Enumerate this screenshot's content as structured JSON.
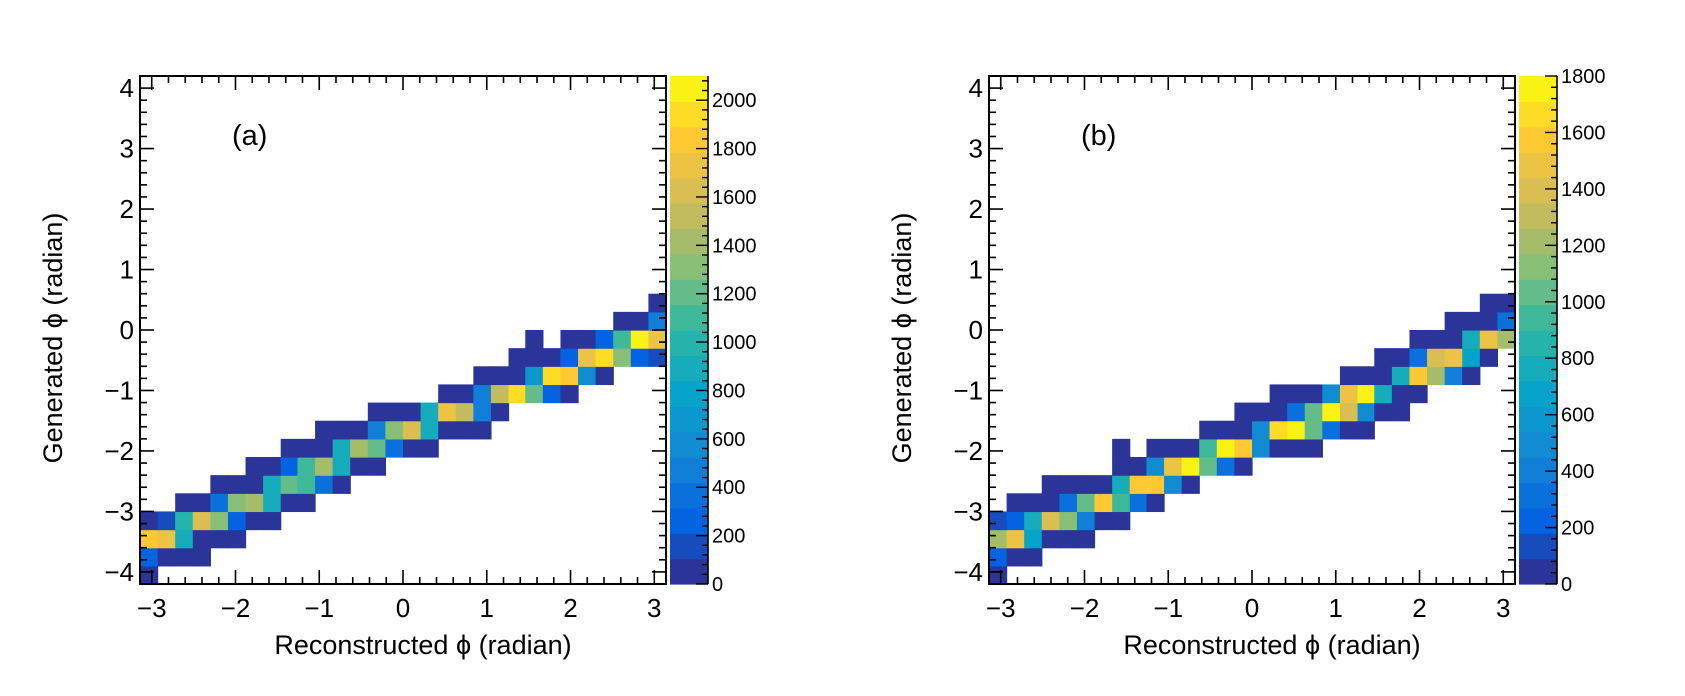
{
  "chart_data": [
    {
      "type": "heatmap",
      "panel_label": "(a)",
      "xlabel": "Reconstructed ϕ (radian)",
      "ylabel": "Generated ϕ (radian)",
      "xlim": [
        -3.14,
        3.14
      ],
      "ylim": [
        -4.2,
        4.2
      ],
      "x_ticks": [
        -3,
        -2,
        -1,
        0,
        1,
        2,
        3
      ],
      "y_ticks": [
        -4,
        -3,
        -2,
        -1,
        0,
        1,
        2,
        3,
        4
      ],
      "x_tick_labels": [
        "−3",
        "−2",
        "−1",
        "0",
        "1",
        "2",
        "3"
      ],
      "y_tick_labels": [
        "−4",
        "−3",
        "−2",
        "−1",
        "0",
        "1",
        "2",
        "3",
        "4"
      ],
      "colorbar": {
        "min": 0,
        "max": 2100,
        "ticks": [
          0,
          200,
          400,
          600,
          800,
          1000,
          1200,
          1400,
          1600,
          1800,
          2000
        ],
        "tick_labels": [
          "0",
          "200",
          "400",
          "600",
          "800",
          "1000",
          "1200",
          "1400",
          "1600",
          "1800",
          "2000"
        ]
      },
      "x_edges": [
        -3.14,
        -2.93,
        -2.72,
        -2.51,
        -2.3,
        -2.09,
        -1.88,
        -1.67,
        -1.46,
        -1.26,
        -1.05,
        -0.84,
        -0.63,
        -0.42,
        -0.21,
        0.0,
        0.21,
        0.42,
        0.63,
        0.84,
        1.05,
        1.26,
        1.46,
        1.67,
        1.88,
        2.09,
        2.3,
        2.51,
        2.72,
        2.93,
        3.14
      ],
      "y_edges": [
        -4.2,
        -3.9,
        -3.6,
        -3.3,
        -3.0,
        -2.7,
        -2.4,
        -2.1,
        -1.8,
        -1.5,
        -1.2,
        -0.9,
        -0.6,
        -0.3,
        0.0,
        0.3,
        0.6,
        0.9,
        1.2,
        1.5,
        1.8,
        2.1,
        2.4,
        2.7,
        3.0,
        3.3,
        3.6,
        3.9,
        4.2
      ],
      "cells": [
        [
          0,
          0,
          20
        ],
        [
          0,
          1,
          250
        ],
        [
          1,
          1,
          50
        ],
        [
          2,
          1,
          50
        ],
        [
          3,
          1,
          50
        ],
        [
          0,
          2,
          1800
        ],
        [
          1,
          2,
          1700
        ],
        [
          2,
          2,
          900
        ],
        [
          3,
          2,
          40
        ],
        [
          4,
          2,
          40
        ],
        [
          5,
          2,
          40
        ],
        [
          0,
          3,
          100
        ],
        [
          1,
          3,
          200
        ],
        [
          2,
          3,
          1000
        ],
        [
          3,
          3,
          1600
        ],
        [
          4,
          3,
          1300
        ],
        [
          5,
          3,
          300
        ],
        [
          6,
          3,
          40
        ],
        [
          7,
          3,
          40
        ],
        [
          2,
          4,
          40
        ],
        [
          3,
          4,
          40
        ],
        [
          4,
          4,
          400
        ],
        [
          5,
          4,
          1300
        ],
        [
          6,
          4,
          1400
        ],
        [
          7,
          4,
          900
        ],
        [
          8,
          4,
          40
        ],
        [
          9,
          4,
          40
        ],
        [
          4,
          5,
          40
        ],
        [
          5,
          5,
          40
        ],
        [
          6,
          5,
          40
        ],
        [
          7,
          5,
          850
        ],
        [
          8,
          5,
          1200
        ],
        [
          9,
          5,
          1150
        ],
        [
          10,
          5,
          400
        ],
        [
          11,
          5,
          40
        ],
        [
          6,
          6,
          40
        ],
        [
          7,
          6,
          40
        ],
        [
          8,
          6,
          300
        ],
        [
          9,
          6,
          1150
        ],
        [
          10,
          6,
          1400
        ],
        [
          11,
          6,
          850
        ],
        [
          12,
          6,
          40
        ],
        [
          13,
          6,
          40
        ],
        [
          8,
          7,
          40
        ],
        [
          9,
          7,
          40
        ],
        [
          10,
          7,
          40
        ],
        [
          11,
          7,
          850
        ],
        [
          12,
          7,
          1450
        ],
        [
          13,
          7,
          1200
        ],
        [
          14,
          7,
          400
        ],
        [
          15,
          7,
          40
        ],
        [
          16,
          7,
          40
        ],
        [
          10,
          8,
          40
        ],
        [
          11,
          8,
          40
        ],
        [
          12,
          8,
          40
        ],
        [
          13,
          8,
          450
        ],
        [
          14,
          8,
          1350
        ],
        [
          15,
          8,
          1650
        ],
        [
          16,
          8,
          900
        ],
        [
          17,
          8,
          40
        ],
        [
          18,
          8,
          40
        ],
        [
          19,
          8,
          40
        ],
        [
          13,
          9,
          40
        ],
        [
          14,
          9,
          40
        ],
        [
          15,
          9,
          40
        ],
        [
          16,
          9,
          850
        ],
        [
          17,
          9,
          1700
        ],
        [
          18,
          9,
          1500
        ],
        [
          19,
          9,
          500
        ],
        [
          20,
          9,
          40
        ],
        [
          17,
          10,
          40
        ],
        [
          18,
          10,
          40
        ],
        [
          19,
          10,
          450
        ],
        [
          20,
          10,
          1500
        ],
        [
          21,
          10,
          1900
        ],
        [
          22,
          10,
          1200
        ],
        [
          23,
          10,
          300
        ],
        [
          24,
          10,
          40
        ],
        [
          19,
          11,
          40
        ],
        [
          20,
          11,
          40
        ],
        [
          21,
          11,
          40
        ],
        [
          22,
          11,
          700
        ],
        [
          23,
          11,
          1950
        ],
        [
          24,
          11,
          1800
        ],
        [
          25,
          11,
          600
        ],
        [
          26,
          11,
          40
        ],
        [
          21,
          12,
          40
        ],
        [
          22,
          12,
          40
        ],
        [
          23,
          12,
          40
        ],
        [
          24,
          12,
          300
        ],
        [
          25,
          12,
          1700
        ],
        [
          26,
          12,
          1900
        ],
        [
          27,
          12,
          1300
        ],
        [
          28,
          12,
          250
        ],
        [
          29,
          12,
          120
        ],
        [
          22,
          13,
          40
        ],
        [
          24,
          13,
          40
        ],
        [
          25,
          13,
          40
        ],
        [
          26,
          13,
          250
        ],
        [
          27,
          13,
          1050
        ],
        [
          28,
          13,
          2050
        ],
        [
          29,
          13,
          1700
        ],
        [
          27,
          14,
          40
        ],
        [
          28,
          14,
          40
        ],
        [
          29,
          14,
          500
        ],
        [
          29,
          15,
          40
        ]
      ]
    },
    {
      "type": "heatmap",
      "panel_label": "(b)",
      "xlabel": "Reconstructed ϕ (radian)",
      "ylabel": "Generated ϕ (radian)",
      "xlim": [
        -3.14,
        3.14
      ],
      "ylim": [
        -4.2,
        4.2
      ],
      "x_ticks": [
        -3,
        -2,
        -1,
        0,
        1,
        2,
        3
      ],
      "y_ticks": [
        -4,
        -3,
        -2,
        -1,
        0,
        1,
        2,
        3,
        4
      ],
      "x_tick_labels": [
        "−3",
        "−2",
        "−1",
        "0",
        "1",
        "2",
        "3"
      ],
      "y_tick_labels": [
        "−4",
        "−3",
        "−2",
        "−1",
        "0",
        "1",
        "2",
        "3",
        "4"
      ],
      "colorbar": {
        "min": 0,
        "max": 1800,
        "ticks": [
          0,
          200,
          400,
          600,
          800,
          1000,
          1200,
          1400,
          1600,
          1800
        ],
        "tick_labels": [
          "0",
          "200",
          "400",
          "600",
          "800",
          "1000",
          "1200",
          "1400",
          "1600",
          "1800"
        ]
      },
      "x_edges": [
        -3.14,
        -2.93,
        -2.72,
        -2.51,
        -2.3,
        -2.09,
        -1.88,
        -1.67,
        -1.46,
        -1.26,
        -1.05,
        -0.84,
        -0.63,
        -0.42,
        -0.21,
        0.0,
        0.21,
        0.42,
        0.63,
        0.84,
        1.05,
        1.26,
        1.46,
        1.67,
        1.88,
        2.09,
        2.3,
        2.51,
        2.72,
        2.93,
        3.14
      ],
      "y_edges": [
        -4.2,
        -3.9,
        -3.6,
        -3.3,
        -3.0,
        -2.7,
        -2.4,
        -2.1,
        -1.8,
        -1.5,
        -1.2,
        -0.9,
        -0.6,
        -0.3,
        0.0,
        0.3,
        0.6,
        0.9,
        1.2,
        1.5,
        1.8,
        2.1,
        2.4,
        2.7,
        3.0,
        3.3,
        3.6,
        3.9,
        4.2
      ],
      "cells": [
        [
          0,
          0,
          20
        ],
        [
          0,
          1,
          200
        ],
        [
          1,
          1,
          50
        ],
        [
          2,
          1,
          50
        ],
        [
          0,
          2,
          1200
        ],
        [
          1,
          2,
          1450
        ],
        [
          2,
          2,
          700
        ],
        [
          3,
          2,
          40
        ],
        [
          4,
          2,
          40
        ],
        [
          5,
          2,
          40
        ],
        [
          0,
          3,
          150
        ],
        [
          1,
          3,
          200
        ],
        [
          2,
          3,
          800
        ],
        [
          3,
          3,
          1400
        ],
        [
          4,
          3,
          1100
        ],
        [
          5,
          3,
          400
        ],
        [
          6,
          3,
          40
        ],
        [
          7,
          3,
          40
        ],
        [
          1,
          4,
          40
        ],
        [
          2,
          4,
          40
        ],
        [
          3,
          4,
          40
        ],
        [
          4,
          4,
          300
        ],
        [
          5,
          4,
          1000
        ],
        [
          6,
          4,
          1600
        ],
        [
          7,
          4,
          900
        ],
        [
          8,
          4,
          300
        ],
        [
          9,
          4,
          40
        ],
        [
          3,
          5,
          40
        ],
        [
          4,
          5,
          40
        ],
        [
          5,
          5,
          40
        ],
        [
          6,
          5,
          40
        ],
        [
          7,
          5,
          750
        ],
        [
          8,
          5,
          1550
        ],
        [
          9,
          5,
          1550
        ],
        [
          10,
          5,
          500
        ],
        [
          11,
          5,
          40
        ],
        [
          7,
          6,
          40
        ],
        [
          8,
          6,
          40
        ],
        [
          9,
          6,
          500
        ],
        [
          10,
          6,
          1450
        ],
        [
          11,
          6,
          1800
        ],
        [
          12,
          6,
          1000
        ],
        [
          13,
          6,
          300
        ],
        [
          14,
          6,
          40
        ],
        [
          7,
          7,
          40
        ],
        [
          9,
          7,
          40
        ],
        [
          10,
          7,
          40
        ],
        [
          11,
          7,
          40
        ],
        [
          12,
          7,
          900
        ],
        [
          13,
          7,
          1750
        ],
        [
          14,
          7,
          1600
        ],
        [
          15,
          7,
          500
        ],
        [
          16,
          7,
          40
        ],
        [
          17,
          7,
          40
        ],
        [
          18,
          7,
          40
        ],
        [
          12,
          8,
          40
        ],
        [
          13,
          8,
          40
        ],
        [
          14,
          8,
          40
        ],
        [
          15,
          8,
          500
        ],
        [
          16,
          8,
          1650
        ],
        [
          17,
          8,
          1800
        ],
        [
          18,
          8,
          1050
        ],
        [
          19,
          8,
          300
        ],
        [
          20,
          8,
          40
        ],
        [
          21,
          8,
          40
        ],
        [
          14,
          9,
          40
        ],
        [
          15,
          9,
          40
        ],
        [
          16,
          9,
          40
        ],
        [
          17,
          9,
          300
        ],
        [
          18,
          9,
          1000
        ],
        [
          19,
          9,
          1800
        ],
        [
          20,
          9,
          1400
        ],
        [
          21,
          9,
          500
        ],
        [
          22,
          9,
          40
        ],
        [
          23,
          9,
          40
        ],
        [
          16,
          10,
          40
        ],
        [
          17,
          10,
          40
        ],
        [
          18,
          10,
          40
        ],
        [
          19,
          10,
          500
        ],
        [
          20,
          10,
          1450
        ],
        [
          21,
          10,
          1750
        ],
        [
          22,
          10,
          800
        ],
        [
          23,
          10,
          40
        ],
        [
          24,
          10,
          40
        ],
        [
          20,
          11,
          40
        ],
        [
          21,
          11,
          40
        ],
        [
          22,
          11,
          40
        ],
        [
          23,
          11,
          800
        ],
        [
          24,
          11,
          1550
        ],
        [
          25,
          11,
          1250
        ],
        [
          26,
          11,
          400
        ],
        [
          27,
          11,
          40
        ],
        [
          22,
          12,
          40
        ],
        [
          23,
          12,
          40
        ],
        [
          24,
          12,
          300
        ],
        [
          25,
          12,
          1350
        ],
        [
          26,
          12,
          1500
        ],
        [
          27,
          12,
          700
        ],
        [
          28,
          12,
          40
        ],
        [
          24,
          13,
          40
        ],
        [
          25,
          13,
          40
        ],
        [
          26,
          13,
          40
        ],
        [
          27,
          13,
          800
        ],
        [
          28,
          13,
          1450
        ],
        [
          29,
          13,
          1250
        ],
        [
          26,
          14,
          40
        ],
        [
          27,
          14,
          40
        ],
        [
          28,
          14,
          40
        ],
        [
          29,
          14,
          300
        ],
        [
          28,
          15,
          40
        ],
        [
          29,
          15,
          40
        ]
      ]
    }
  ]
}
